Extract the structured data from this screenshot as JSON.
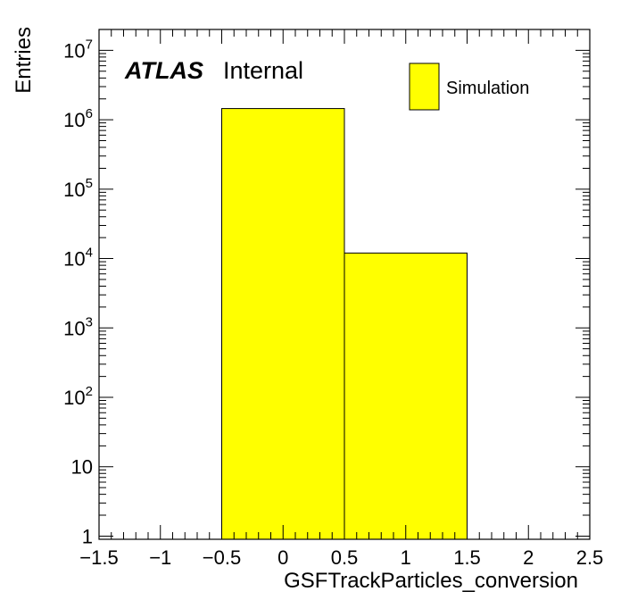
{
  "chart_data": {
    "type": "bar",
    "histogram": true,
    "title": "",
    "xlabel": "GSFTrackParticles_conversion",
    "ylabel": "Entries",
    "bins": [
      {
        "x_low": -0.5,
        "x_high": 0.5,
        "value": 1450000
      },
      {
        "x_low": 0.5,
        "x_high": 1.5,
        "value": 12000
      }
    ],
    "xlim": [
      -1.5,
      2.5
    ],
    "ylim": [
      0.9,
      20000000
    ],
    "y_scale": "log",
    "x_ticks": [
      {
        "value": -1.5,
        "label": "−1.5"
      },
      {
        "value": -1,
        "label": "−1"
      },
      {
        "value": -0.5,
        "label": "−0.5"
      },
      {
        "value": 0,
        "label": "0"
      },
      {
        "value": 0.5,
        "label": "0.5"
      },
      {
        "value": 1,
        "label": "1"
      },
      {
        "value": 1.5,
        "label": "1.5"
      },
      {
        "value": 2,
        "label": "2"
      },
      {
        "value": 2.5,
        "label": "2.5"
      }
    ],
    "y_ticks": [
      {
        "value": 1,
        "base": "1",
        "exp": ""
      },
      {
        "value": 10,
        "base": "10",
        "exp": ""
      },
      {
        "value": 100,
        "base": "10",
        "exp": "2"
      },
      {
        "value": 1000,
        "base": "10",
        "exp": "3"
      },
      {
        "value": 10000,
        "base": "10",
        "exp": "4"
      },
      {
        "value": 100000,
        "base": "10",
        "exp": "5"
      },
      {
        "value": 1000000,
        "base": "10",
        "exp": "6"
      },
      {
        "value": 10000000,
        "base": "10",
        "exp": "7"
      }
    ],
    "series": [
      {
        "name": "Simulation",
        "color": "#ffff00",
        "edge_color": "#000000"
      }
    ],
    "legend": {
      "position": "top-right",
      "entries": [
        "Simulation"
      ]
    },
    "annotations": {
      "experiment": "ATLAS",
      "status": "Internal"
    },
    "grid": false
  }
}
